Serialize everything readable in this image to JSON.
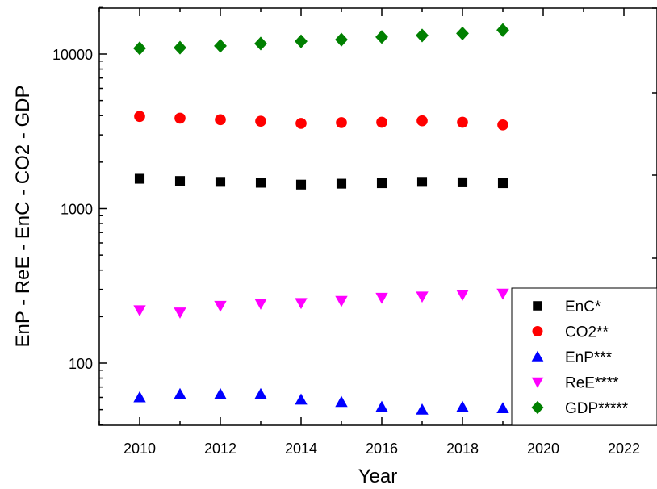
{
  "chart_data": {
    "type": "scatter",
    "xlabel": "Year",
    "ylabel": "EnP  -  ReE  -  EnC  -  CO2  -  GDP",
    "xlim": [
      2009,
      2023
    ],
    "ylim": [
      40,
      20000
    ],
    "yscale": "log",
    "x_ticks": [
      2010,
      2012,
      2014,
      2016,
      2018,
      2020,
      2022
    ],
    "y_ticks": [
      100,
      1000,
      10000
    ],
    "legend_position": "bottom-right",
    "x": [
      2010,
      2011,
      2012,
      2013,
      2014,
      2015,
      2016,
      2017,
      2018,
      2019
    ],
    "series": [
      {
        "name": "EnC*",
        "marker": "square",
        "color": "#000000",
        "values": [
          1560,
          1510,
          1490,
          1470,
          1430,
          1450,
          1460,
          1490,
          1480,
          1460
        ]
      },
      {
        "name": "CO2**",
        "marker": "circle",
        "color": "#ff0000",
        "values": [
          3950,
          3850,
          3760,
          3680,
          3560,
          3600,
          3620,
          3700,
          3620,
          3480
        ]
      },
      {
        "name": "EnP***",
        "marker": "triangle-up",
        "color": "#0000ff",
        "values": [
          60,
          63,
          63,
          63,
          58,
          56,
          52,
          50,
          52,
          51
        ]
      },
      {
        "name": "ReE****",
        "marker": "triangle-down",
        "color": "#ff00ff",
        "values": [
          220,
          213,
          235,
          243,
          245,
          253,
          265,
          270,
          277,
          282
        ]
      },
      {
        "name": "GDP*****",
        "marker": "diamond",
        "color": "#008000",
        "values": [
          10900,
          11000,
          11300,
          11700,
          12100,
          12400,
          12900,
          13200,
          13600,
          14300
        ]
      }
    ]
  }
}
